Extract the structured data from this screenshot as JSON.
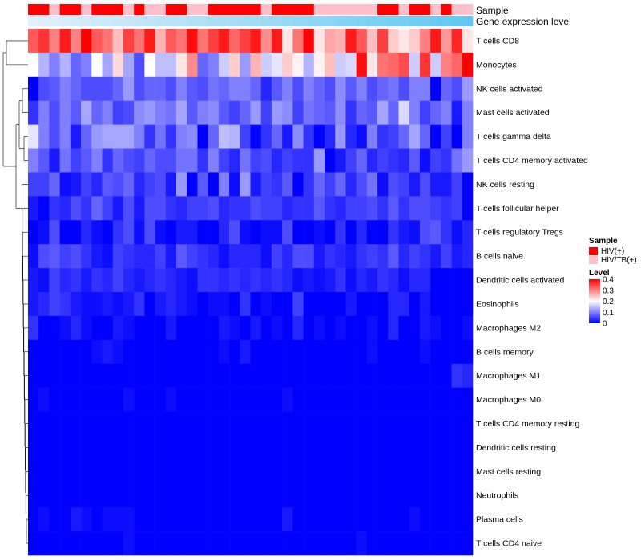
{
  "chart_data": {
    "type": "heatmap",
    "title": "",
    "annotations": {
      "sample_label": "Sample",
      "expression_label": "Gene expression level",
      "sample_groups": [
        "HIV+",
        "HIV+",
        "HIV/TB+",
        "HIV+",
        "HIV+",
        "HIV/TB+",
        "HIV+",
        "HIV+",
        "HIV+",
        "HIV/TB+",
        "HIV+",
        "HIV/TB+",
        "HIV/TB+",
        "HIV+",
        "HIV+",
        "HIV/TB+",
        "HIV/TB+",
        "HIV+",
        "HIV+",
        "HIV+",
        "HIV+",
        "HIV+",
        "HIV/TB+",
        "HIV+",
        "HIV+",
        "HIV+",
        "HIV+",
        "HIV/TB+",
        "HIV/TB+",
        "HIV/TB+",
        "HIV/TB+",
        "HIV/TB+",
        "HIV/TB+",
        "HIV+",
        "HIV+",
        "HIV/TB+",
        "HIV+",
        "HIV+",
        "HIV/TB+",
        "HIV+",
        "HIV/TB+",
        "HIV/TB+"
      ]
    },
    "columns": 42,
    "rows": [
      {
        "name": "T cells CD8",
        "values": [
          0.33,
          0.36,
          0.3,
          0.38,
          0.3,
          0.4,
          0.33,
          0.31,
          0.25,
          0.35,
          0.31,
          0.38,
          0.26,
          0.33,
          0.31,
          0.39,
          0.31,
          0.35,
          0.38,
          0.32,
          0.35,
          0.38,
          0.29,
          0.38,
          0.22,
          0.31,
          0.4,
          0.22,
          0.27,
          0.26,
          0.38,
          0.33,
          0.25,
          0.35,
          0.24,
          0.22,
          0.24,
          0.3,
          0.38,
          0.28,
          0.37,
          0.22
        ]
      },
      {
        "name": "Monocytes",
        "values": [
          0.2,
          0.14,
          0.1,
          0.14,
          0.08,
          0.1,
          0.2,
          0.13,
          0.23,
          0.13,
          0.06,
          0.2,
          0.15,
          0.15,
          0.22,
          0.29,
          0.08,
          0.1,
          0.16,
          0.24,
          0.12,
          0.26,
          0.16,
          0.18,
          0.24,
          0.21,
          0.14,
          0.21,
          0.25,
          0.16,
          0.17,
          0.39,
          0.22,
          0.31,
          0.32,
          0.34,
          0.16,
          0.36,
          0.16,
          0.3,
          0.32,
          0.4
        ]
      },
      {
        "name": "NK cells activated",
        "values": [
          0.0,
          0.06,
          0.07,
          0.1,
          0.08,
          0.06,
          0.06,
          0.06,
          0.08,
          0.12,
          0.06,
          0.08,
          0.08,
          0.06,
          0.1,
          0.07,
          0.06,
          0.09,
          0.08,
          0.1,
          0.1,
          0.08,
          0.03,
          0.07,
          0.1,
          0.06,
          0.1,
          0.08,
          0.06,
          0.11,
          0.07,
          0.1,
          0.06,
          0.08,
          0.09,
          0.06,
          0.1,
          0.1,
          0.0,
          0.08,
          0.06,
          0.12
        ]
      },
      {
        "name": "Mast cells activated",
        "values": [
          0.04,
          0.1,
          0.06,
          0.1,
          0.07,
          0.13,
          0.08,
          0.1,
          0.05,
          0.06,
          0.11,
          0.12,
          0.1,
          0.09,
          0.13,
          0.07,
          0.1,
          0.11,
          0.07,
          0.05,
          0.08,
          0.12,
          0.05,
          0.12,
          0.11,
          0.05,
          0.09,
          0.08,
          0.07,
          0.11,
          0.04,
          0.08,
          0.07,
          0.13,
          0.08,
          0.17,
          0.1,
          0.05,
          0.08,
          0.1,
          0.02,
          0.1
        ]
      },
      {
        "name": "T cells gamma delta",
        "values": [
          0.18,
          0.1,
          0.06,
          0.1,
          0.02,
          0.08,
          0.12,
          0.13,
          0.13,
          0.13,
          0.1,
          0.04,
          0.09,
          0.04,
          0.1,
          0.11,
          0.0,
          0.08,
          0.15,
          0.14,
          0.05,
          0.0,
          0.04,
          0.08,
          0.02,
          0.11,
          0.04,
          0.0,
          0.03,
          0.12,
          0.03,
          0.01,
          0.1,
          0.04,
          0.05,
          0.08,
          0.13,
          0.08,
          0.0,
          0.05,
          0.0,
          0.1
        ]
      },
      {
        "name": "T cells CD4 memory activated",
        "values": [
          0.1,
          0.07,
          0.02,
          0.09,
          0.05,
          0.07,
          0.1,
          0.04,
          0.08,
          0.06,
          0.05,
          0.08,
          0.06,
          0.06,
          0.09,
          0.09,
          0.04,
          0.1,
          0.05,
          0.03,
          0.09,
          0.05,
          0.06,
          0.03,
          0.05,
          0.04,
          0.04,
          0.12,
          0.0,
          0.02,
          0.05,
          0.08,
          0.03,
          0.05,
          0.04,
          0.03,
          0.07,
          0.01,
          0.05,
          0.04,
          0.09,
          0.12
        ]
      },
      {
        "name": "NK cells resting",
        "values": [
          0.05,
          0.05,
          0.08,
          0.01,
          0.02,
          0.05,
          0.03,
          0.07,
          0.06,
          0.08,
          0.03,
          0.05,
          0.06,
          0.02,
          0.12,
          0.0,
          0.07,
          0.0,
          0.1,
          0.01,
          0.12,
          0.02,
          0.05,
          0.04,
          0.07,
          0.0,
          0.04,
          0.08,
          0.05,
          0.08,
          0.03,
          0.06,
          0.09,
          0.01,
          0.06,
          0.05,
          0.02,
          0.06,
          0.02,
          0.02,
          0.05,
          0.0
        ]
      },
      {
        "name": "T cells follicular helper",
        "values": [
          0.02,
          0.0,
          0.04,
          0.03,
          0.06,
          0.04,
          0.08,
          0.05,
          0.02,
          0.06,
          0.02,
          0.06,
          0.06,
          0.04,
          0.03,
          0.05,
          0.05,
          0.06,
          0.03,
          0.04,
          0.04,
          0.06,
          0.05,
          0.05,
          0.03,
          0.04,
          0.04,
          0.07,
          0.04,
          0.03,
          0.05,
          0.05,
          0.06,
          0.04,
          0.07,
          0.04,
          0.06,
          0.06,
          0.05,
          0.04,
          0.05,
          0.0
        ]
      },
      {
        "name": "T cells regulatory  Tregs",
        "values": [
          0.0,
          0.01,
          0.06,
          0.0,
          0.0,
          0.03,
          0.01,
          0.0,
          0.04,
          0.06,
          0.01,
          0.06,
          0.01,
          0.0,
          0.02,
          0.02,
          0.0,
          0.0,
          0.03,
          0.06,
          0.01,
          0.0,
          0.01,
          0.01,
          0.06,
          0.0,
          0.0,
          0.01,
          0.0,
          0.04,
          0.0,
          0.03,
          0.0,
          0.0,
          0.04,
          0.02,
          0.01,
          0.06,
          0.07,
          0.04,
          0.01,
          0.03
        ]
      },
      {
        "name": "B cells naive",
        "values": [
          0.01,
          0.06,
          0.07,
          0.05,
          0.06,
          0.04,
          0.02,
          0.01,
          0.05,
          0.04,
          0.03,
          0.03,
          0.05,
          0.02,
          0.07,
          0.05,
          0.04,
          0.03,
          0.01,
          0.03,
          0.03,
          0.03,
          0.01,
          0.05,
          0.03,
          0.06,
          0.06,
          0.02,
          0.04,
          0.03,
          0.02,
          0.04,
          0.05,
          0.04,
          0.07,
          0.03,
          0.05,
          0.04,
          0.02,
          0.05,
          0.02,
          0.03
        ]
      },
      {
        "name": "Dendritic cells activated",
        "values": [
          0.02,
          0.01,
          0.05,
          0.03,
          0.04,
          0.02,
          0.04,
          0.03,
          0.05,
          0.03,
          0.02,
          0.03,
          0.04,
          0.03,
          0.02,
          0.01,
          0.04,
          0.04,
          0.03,
          0.04,
          0.03,
          0.04,
          0.03,
          0.04,
          0.03,
          0.01,
          0.02,
          0.01,
          0.02,
          0.04,
          0.01,
          0.03,
          0.02,
          0.04,
          0.03,
          0.01,
          0.03,
          0.03,
          0.0,
          0.0,
          0.0,
          0.0
        ]
      },
      {
        "name": "Eosinophils",
        "values": [
          0.02,
          0.03,
          0.05,
          0.04,
          0.02,
          0.01,
          0.01,
          0.02,
          0.01,
          0.02,
          0.04,
          0.0,
          0.02,
          0.03,
          0.02,
          0.01,
          0.0,
          0.01,
          0.01,
          0.0,
          0.04,
          0.0,
          0.01,
          0.0,
          0.0,
          0.05,
          0.0,
          0.0,
          0.0,
          0.0,
          0.02,
          0.0,
          0.0,
          0.0,
          0.03,
          0.03,
          0.0,
          0.02,
          0.0,
          0.0,
          0.0,
          0.0
        ]
      },
      {
        "name": "Macrophages M2",
        "values": [
          0.04,
          0.0,
          0.0,
          0.01,
          0.03,
          0.01,
          0.0,
          0.0,
          0.02,
          0.01,
          0.0,
          0.0,
          0.0,
          0.02,
          0.0,
          0.0,
          0.0,
          0.0,
          0.02,
          0.01,
          0.0,
          0.02,
          0.0,
          0.01,
          0.0,
          0.03,
          0.0,
          0.01,
          0.0,
          0.01,
          0.0,
          0.0,
          0.01,
          0.0,
          0.03,
          0.0,
          0.0,
          0.02,
          0.01,
          0.0,
          0.0,
          0.01
        ]
      },
      {
        "name": "B cells memory",
        "values": [
          0.0,
          0.0,
          0.0,
          0.0,
          0.0,
          0.0,
          0.01,
          0.02,
          0.01,
          0.0,
          0.0,
          0.0,
          0.0,
          0.0,
          0.0,
          0.0,
          0.0,
          0.0,
          0.01,
          0.0,
          0.02,
          0.0,
          0.0,
          0.0,
          0.0,
          0.0,
          0.0,
          0.0,
          0.0,
          0.0,
          0.0,
          0.0,
          0.01,
          0.0,
          0.0,
          0.0,
          0.0,
          0.01,
          0.0,
          0.0,
          0.0,
          0.0
        ]
      },
      {
        "name": "Macrophages M1",
        "values": [
          0.0,
          0.0,
          0.0,
          0.0,
          0.0,
          0.0,
          0.0,
          0.0,
          0.0,
          0.0,
          0.0,
          0.0,
          0.0,
          0.0,
          0.0,
          0.0,
          0.0,
          0.0,
          0.0,
          0.0,
          0.0,
          0.0,
          0.0,
          0.0,
          0.0,
          0.0,
          0.0,
          0.0,
          0.0,
          0.0,
          0.0,
          0.0,
          0.0,
          0.0,
          0.0,
          0.0,
          0.0,
          0.0,
          0.0,
          0.0,
          0.04,
          0.03
        ]
      },
      {
        "name": "Macrophages M0",
        "values": [
          0.0,
          0.01,
          0.0,
          0.0,
          0.0,
          0.0,
          0.0,
          0.0,
          0.0,
          0.01,
          0.0,
          0.0,
          0.0,
          0.01,
          0.0,
          0.0,
          0.0,
          0.0,
          0.0,
          0.0,
          0.0,
          0.0,
          0.0,
          0.0,
          0.01,
          0.0,
          0.0,
          0.0,
          0.0,
          0.0,
          0.0,
          0.0,
          0.0,
          0.0,
          0.0,
          0.0,
          0.0,
          0.0,
          0.0,
          0.0,
          0.0,
          0.0
        ]
      },
      {
        "name": "T cells CD4 memory resting",
        "values": [
          0.0,
          0.0,
          0.0,
          0.0,
          0.0,
          0.0,
          0.0,
          0.0,
          0.0,
          0.0,
          0.0,
          0.0,
          0.0,
          0.0,
          0.0,
          0.0,
          0.0,
          0.0,
          0.0,
          0.0,
          0.0,
          0.0,
          0.0,
          0.0,
          0.0,
          0.0,
          0.0,
          0.0,
          0.0,
          0.0,
          0.0,
          0.0,
          0.0,
          0.0,
          0.0,
          0.0,
          0.0,
          0.0,
          0.0,
          0.0,
          0.0,
          0.0
        ]
      },
      {
        "name": "Dendritic cells resting",
        "values": [
          0.0,
          0.0,
          0.0,
          0.0,
          0.0,
          0.0,
          0.0,
          0.0,
          0.0,
          0.0,
          0.0,
          0.0,
          0.0,
          0.0,
          0.0,
          0.0,
          0.0,
          0.0,
          0.0,
          0.0,
          0.0,
          0.0,
          0.0,
          0.0,
          0.0,
          0.0,
          0.0,
          0.0,
          0.0,
          0.0,
          0.0,
          0.0,
          0.0,
          0.0,
          0.0,
          0.0,
          0.0,
          0.0,
          0.0,
          0.0,
          0.0,
          0.0
        ]
      },
      {
        "name": "Mast cells resting",
        "values": [
          0.0,
          0.0,
          0.0,
          0.0,
          0.0,
          0.0,
          0.0,
          0.0,
          0.0,
          0.0,
          0.0,
          0.0,
          0.0,
          0.0,
          0.0,
          0.0,
          0.0,
          0.0,
          0.0,
          0.0,
          0.0,
          0.0,
          0.0,
          0.0,
          0.0,
          0.0,
          0.0,
          0.0,
          0.0,
          0.0,
          0.0,
          0.0,
          0.0,
          0.0,
          0.0,
          0.0,
          0.0,
          0.0,
          0.0,
          0.0,
          0.0,
          0.0
        ]
      },
      {
        "name": "Neutrophils",
        "values": [
          0.0,
          0.0,
          0.0,
          0.0,
          0.0,
          0.0,
          0.0,
          0.0,
          0.0,
          0.0,
          0.0,
          0.0,
          0.0,
          0.0,
          0.0,
          0.0,
          0.0,
          0.0,
          0.0,
          0.0,
          0.0,
          0.0,
          0.0,
          0.0,
          0.0,
          0.0,
          0.0,
          0.0,
          0.0,
          0.0,
          0.0,
          0.0,
          0.0,
          0.0,
          0.0,
          0.0,
          0.0,
          0.0,
          0.0,
          0.0,
          0.0,
          0.0
        ]
      },
      {
        "name": "Plasma cells",
        "values": [
          0.0,
          0.01,
          0.0,
          0.0,
          0.02,
          0.01,
          0.0,
          0.01,
          0.01,
          0.01,
          0.0,
          0.0,
          0.0,
          0.0,
          0.0,
          0.0,
          0.0,
          0.0,
          0.0,
          0.0,
          0.0,
          0.0,
          0.0,
          0.0,
          0.02,
          0.0,
          0.0,
          0.0,
          0.0,
          0.0,
          0.0,
          0.0,
          0.0,
          0.0,
          0.0,
          0.0,
          0.01,
          0.0,
          0.0,
          0.0,
          0.0,
          0.0
        ]
      },
      {
        "name": "T cells CD4 naive",
        "values": [
          0.0,
          0.0,
          0.0,
          0.0,
          0.0,
          0.0,
          0.0,
          0.0,
          0.0,
          0.01,
          0.0,
          0.0,
          0.0,
          0.0,
          0.0,
          0.0,
          0.0,
          0.0,
          0.0,
          0.0,
          0.0,
          0.0,
          0.0,
          0.0,
          0.0,
          0.0,
          0.0,
          0.0,
          0.0,
          0.0,
          0.0,
          0.01,
          0.0,
          0.0,
          0.0,
          0.0,
          0.0,
          0.0,
          0.0,
          0.0,
          0.0,
          0.0
        ]
      }
    ],
    "color_scale": {
      "stops": [
        0,
        0.2,
        0.4
      ],
      "colors": [
        "#0000FF",
        "#FFFFFF",
        "#FF0000"
      ]
    },
    "legend": {
      "sample_title": "Sample",
      "sample_entries": [
        {
          "label": "HIV(+)",
          "color": "#FF0000",
          "key": "HIV+"
        },
        {
          "label": "HIV/TB(+)",
          "color": "#FFC0CB",
          "key": "HIV/TB+"
        }
      ],
      "level_title": "Level",
      "level_ticks": [
        "0.4",
        "0.3",
        "0.2",
        "0.1",
        "0"
      ],
      "level_tick_values": [
        0.4,
        0.3,
        0.2,
        0.1,
        0
      ],
      "position": "right"
    }
  }
}
